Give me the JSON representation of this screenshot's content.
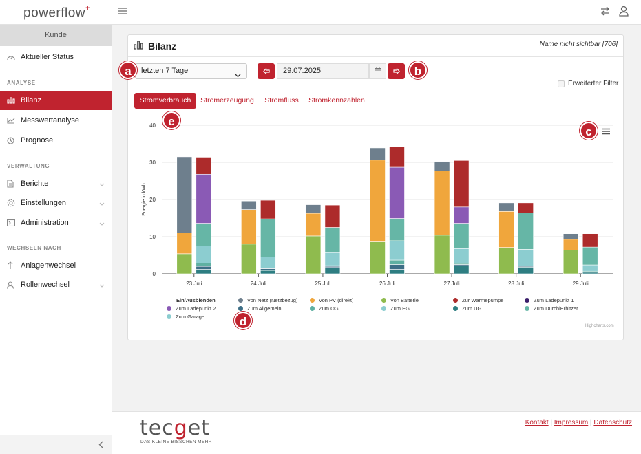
{
  "app": {
    "logo": "powerflow",
    "logo_mark": "+"
  },
  "sidebar": {
    "kunde": "Kunde",
    "items": [
      {
        "label": "Aktueller Status"
      },
      {
        "label": "Bilanz"
      },
      {
        "label": "Messwertanalyse"
      },
      {
        "label": "Prognose"
      },
      {
        "label": "Berichte"
      },
      {
        "label": "Einstellungen"
      },
      {
        "label": "Administration"
      },
      {
        "label": "Anlagenwechsel"
      },
      {
        "label": "Rollenwechsel"
      }
    ],
    "sections": {
      "analyse": "ANALYSE",
      "verwaltung": "VERWALTUNG",
      "wechseln": "WECHSELN NACH"
    }
  },
  "card": {
    "title": "Bilanz",
    "note": "Name nicht sichtbar [706]"
  },
  "controls": {
    "period": "letzten 7 Tage",
    "date": "29.07.2025",
    "filter_label": "Erweiterter Filter"
  },
  "tabs": [
    {
      "label": "Stromverbrauch",
      "active": true
    },
    {
      "label": "Stromerzeugung"
    },
    {
      "label": "Stromfluss"
    },
    {
      "label": "Stromkennzahlen"
    }
  ],
  "badges": {
    "a": "a",
    "b": "b",
    "c": "c",
    "d": "d",
    "e": "e"
  },
  "legend_title": "Ein/Ausblenden",
  "credit": "Highcharts.com",
  "footer": {
    "brand_pre": "tec",
    "brand_g": "g",
    "brand_post": "et",
    "tagline": "DAS KLEINE BISSCHEN MEHR",
    "link1": "Kontakt",
    "link2": "Impressum",
    "link3": "Datenschutz",
    "sep": "|"
  },
  "colors": {
    "accent": "#c0232f"
  },
  "chart_data": {
    "type": "bar",
    "stacked": true,
    "ylabel": "Energie in kWh",
    "ylim": [
      0,
      40
    ],
    "yticks": [
      0,
      10,
      20,
      30,
      40
    ],
    "categories": [
      "23 Juli",
      "24 Juli",
      "25 Juli",
      "26 Juli",
      "27 Juli",
      "28 Juli",
      "29 Juli"
    ],
    "stacks": {
      "source": [
        {
          "name": "Von Batterie",
          "color": "#8fbb4e",
          "values": [
            5.4,
            8.0,
            10.2,
            8.6,
            10.4,
            7.1,
            6.4
          ]
        },
        {
          "name": "Von PV (direkt)",
          "color": "#f0a63c",
          "values": [
            5.6,
            9.3,
            6.1,
            22.0,
            17.3,
            9.7,
            2.9
          ]
        },
        {
          "name": "Von Netz (Netzbezug)",
          "color": "#6e7f8d",
          "values": [
            20.5,
            2.3,
            2.3,
            3.3,
            2.5,
            2.3,
            1.5
          ]
        }
      ],
      "consumer": [
        {
          "name": "Zum UG",
          "color": "#2e7e82",
          "values": [
            1.2,
            0.9,
            1.7,
            1.2,
            2.2,
            1.8,
            0.4
          ]
        },
        {
          "name": "Zum Allgemein",
          "color": "#3d6e86",
          "values": [
            0.8,
            0.5,
            0.3,
            1.3,
            0.3,
            0.2,
            0.1
          ]
        },
        {
          "name": "Zum OG",
          "color": "#5fb0a2",
          "values": [
            0.9,
            0.1,
            0.2,
            1.2,
            0.3,
            0.1,
            0.2
          ]
        },
        {
          "name": "Zum EG",
          "color": "#8ccdd0",
          "values": [
            4.6,
            3.0,
            3.5,
            5.2,
            4.0,
            4.5,
            1.7
          ]
        },
        {
          "name": "Zum DurchlErhitzer",
          "color": "#66b6a6",
          "values": [
            6.1,
            10.3,
            6.8,
            6.0,
            6.8,
            9.8,
            4.8
          ]
        },
        {
          "name": "Zum Ladepunkt 2",
          "color": "#8a5ab5",
          "values": [
            13.2,
            0,
            0,
            13.8,
            4.4,
            0,
            0
          ]
        },
        {
          "name": "Zur Wärmepumpe",
          "color": "#ad2b2b",
          "values": [
            4.6,
            5.0,
            6.0,
            5.5,
            12.5,
            2.7,
            3.6
          ]
        }
      ]
    },
    "legend": [
      {
        "name": "Von Netz (Netzbezug)",
        "color": "#6e7f8d"
      },
      {
        "name": "Von PV (direkt)",
        "color": "#f0a63c"
      },
      {
        "name": "Von Batterie",
        "color": "#8fbb4e"
      },
      {
        "name": "Zur Wärmepumpe",
        "color": "#ad2b2b"
      },
      {
        "name": "Zum Ladepunkt 1",
        "color": "#3b1f6b"
      },
      {
        "name": "Zum Ladepunkt 2",
        "color": "#8a5ab5"
      },
      {
        "name": "Zum Allgemein",
        "color": "#3d6e86"
      },
      {
        "name": "Zum OG",
        "color": "#5fb0a2"
      },
      {
        "name": "Zum EG",
        "color": "#8ccdd0"
      },
      {
        "name": "Zum UG",
        "color": "#2e7e82"
      },
      {
        "name": "Zum DurchlErhitzer",
        "color": "#66b6a6"
      },
      {
        "name": "Zum Garage",
        "color": "#8ccdd0"
      }
    ],
    "legend_placement": "bottom",
    "grid": true
  }
}
